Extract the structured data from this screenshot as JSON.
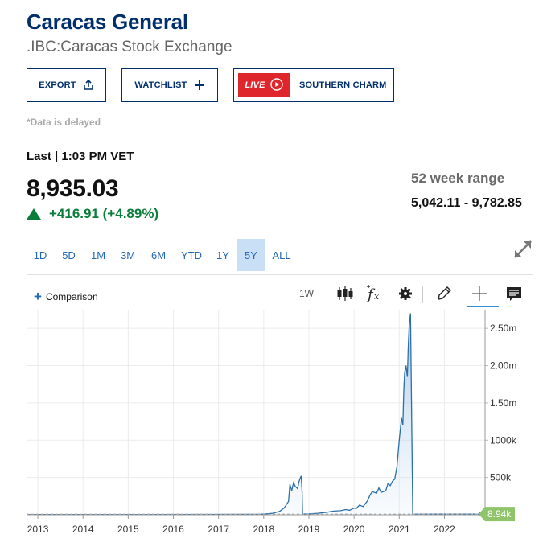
{
  "header": {
    "title": "Caracas General",
    "exchange": ".IBC:Caracas Stock Exchange"
  },
  "buttons": {
    "export": "EXPORT",
    "watchlist": "WATCHLIST",
    "live_badge": "LIVE",
    "live_show": "SOUTHERN CHARM"
  },
  "quote": {
    "delayed_note": "*Data is delayed",
    "last_label": "Last | 1:03 PM VET",
    "price": "8,935.03",
    "change": "+416.91 (+4.89%)",
    "direction": "up",
    "range_label": "52 week range",
    "range_value": "5,042.11 - 9,782.85"
  },
  "tabs": [
    {
      "label": "1D",
      "active": false
    },
    {
      "label": "5D",
      "active": false
    },
    {
      "label": "1M",
      "active": false
    },
    {
      "label": "3M",
      "active": false
    },
    {
      "label": "6M",
      "active": false
    },
    {
      "label": "YTD",
      "active": false
    },
    {
      "label": "1Y",
      "active": false
    },
    {
      "label": "5Y",
      "active": true
    },
    {
      "label": "ALL",
      "active": false
    }
  ],
  "toolbar": {
    "comparison": "Comparison",
    "interval": "1W",
    "icons": [
      "candlestick-icon",
      "function-icon",
      "settings-icon",
      "pencil-icon",
      "crosshair-icon",
      "comment-icon"
    ]
  },
  "colors": {
    "brand": "#002f6c",
    "link": "#2469b3",
    "positive": "#0a7d3b",
    "live_red": "#e0262d",
    "active_tab": "#c9dff5",
    "line": "#2b6fa8",
    "last_price_badge": "#8fc46a"
  },
  "chart_data": {
    "type": "area",
    "x_ticks": [
      "2013",
      "2014",
      "2015",
      "2016",
      "2017",
      "2018",
      "2019",
      "2020",
      "2021",
      "2022"
    ],
    "y_ticks": [
      "500k",
      "1000k",
      "1.50m",
      "2.00m",
      "2.50m"
    ],
    "y_tick_values": [
      500000,
      1000000,
      1500000,
      2000000,
      2500000
    ],
    "ylim": [
      0,
      2750000
    ],
    "xlim": [
      2012.75,
      2022.9
    ],
    "last_value_label": "8.94k",
    "grid": true,
    "series": [
      {
        "x": [
          2012.78,
          2013.5,
          2014.5,
          2015.5,
          2016.5,
          2017.5,
          2017.9,
          2018.05,
          2018.2,
          2018.35,
          2018.45,
          2018.55,
          2018.58,
          2018.62,
          2018.66,
          2018.7,
          2018.75,
          2018.78,
          2018.8,
          2018.83,
          2018.85,
          2018.86,
          2019.0,
          2019.2,
          2019.4,
          2019.55,
          2019.7,
          2019.82,
          2019.9,
          2020.0,
          2020.05,
          2020.12,
          2020.2,
          2020.3,
          2020.35,
          2020.4,
          2020.5,
          2020.55,
          2020.6,
          2020.7,
          2020.75,
          2020.8,
          2020.85,
          2020.9,
          2020.95,
          2021.0,
          2021.05,
          2021.08,
          2021.1,
          2021.12,
          2021.15,
          2021.18,
          2021.2,
          2021.22,
          2021.25,
          2021.3,
          2021.4,
          2021.6,
          2021.8,
          2022.0,
          2022.2,
          2022.4,
          2022.6,
          2022.8
        ],
        "y": [
          3000,
          3500,
          4000,
          4500,
          5000,
          6000,
          8000,
          12000,
          20000,
          45000,
          90000,
          180000,
          410000,
          320000,
          430000,
          380000,
          350000,
          440000,
          480000,
          520000,
          300000,
          10000,
          12000,
          20000,
          35000,
          50000,
          55000,
          70000,
          60000,
          90000,
          85000,
          130000,
          110000,
          190000,
          260000,
          310000,
          290000,
          360000,
          300000,
          320000,
          420000,
          390000,
          450000,
          480000,
          650000,
          1000000,
          1300000,
          1200000,
          1650000,
          1900000,
          2000000,
          1850000,
          2250000,
          2550000,
          2700000,
          9000,
          8000,
          8200,
          8500,
          8800,
          8900,
          8940,
          8935,
          8940
        ]
      }
    ]
  }
}
